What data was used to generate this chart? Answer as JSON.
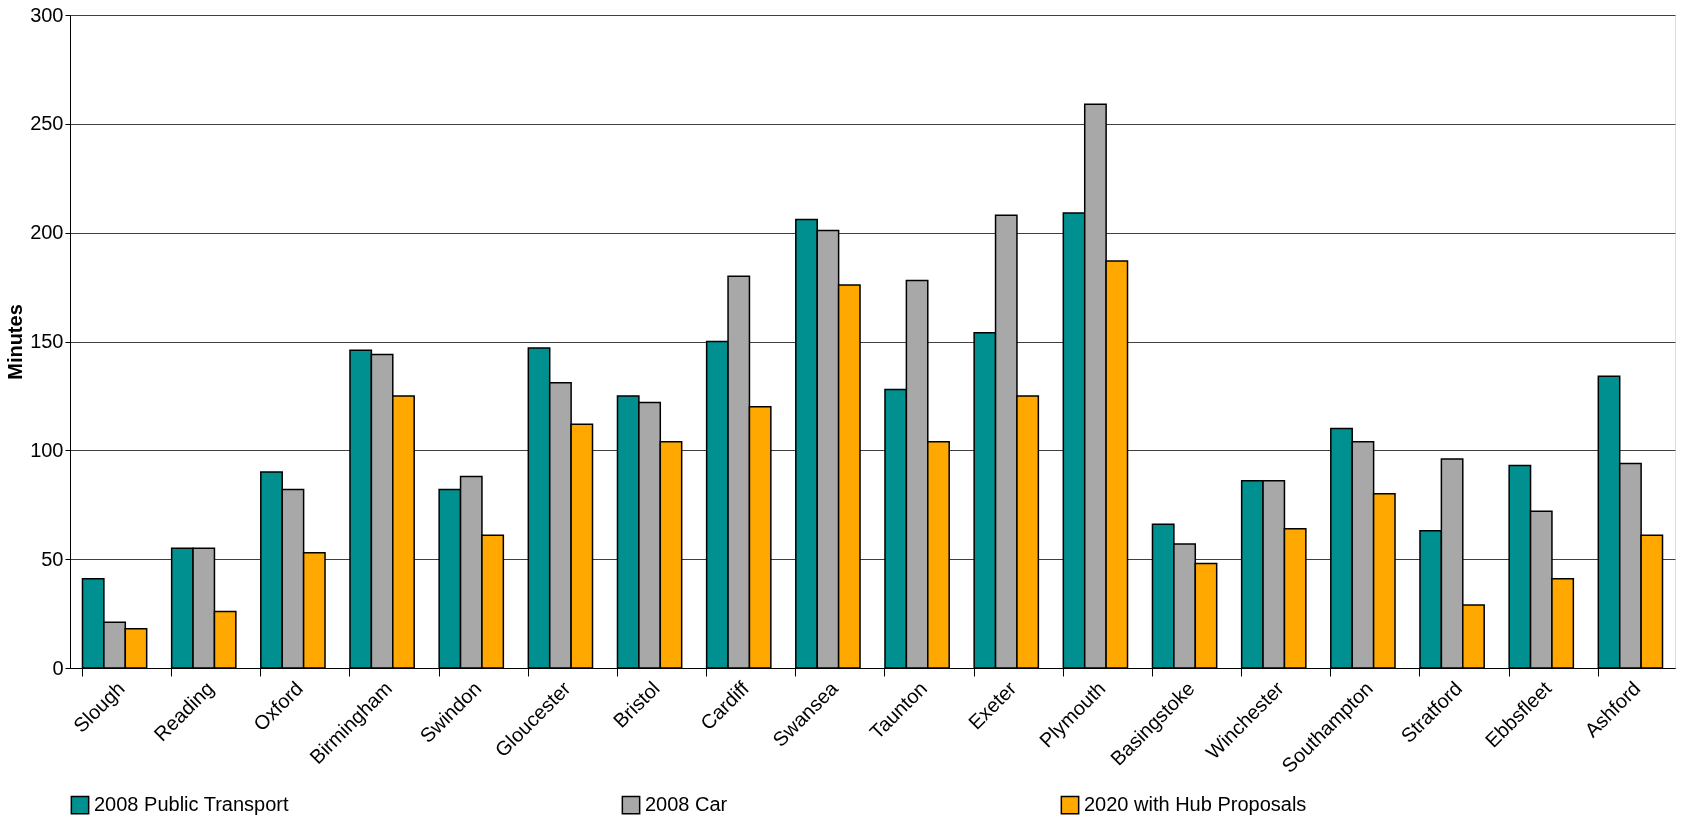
{
  "chart_data": {
    "type": "bar",
    "ylabel": "Minutes",
    "categories": [
      "Slough",
      "Reading",
      "Oxford",
      "Birmingham",
      "Swindon",
      "Gloucester",
      "Bristol",
      "Cardiff",
      "Swansea",
      "Taunton",
      "Exeter",
      "Plymouth",
      "Basingstoke",
      "Winchester",
      "Southampton",
      "Stratford",
      "Ebbsfleet",
      "Ashford"
    ],
    "series": [
      {
        "name": "2008 Public Transport",
        "color": "#009090",
        "values": [
          41,
          55,
          90,
          146,
          82,
          147,
          125,
          150,
          206,
          128,
          154,
          209,
          66,
          86,
          110,
          63,
          93,
          134
        ]
      },
      {
        "name": "2008 Car",
        "color": "#a8a8a8",
        "values": [
          21,
          55,
          82,
          144,
          88,
          131,
          122,
          180,
          201,
          178,
          208,
          259,
          57,
          86,
          104,
          96,
          72,
          94
        ]
      },
      {
        "name": "2020 with Hub Proposals",
        "color": "#ffa800",
        "values": [
          18,
          26,
          53,
          125,
          61,
          112,
          104,
          120,
          176,
          104,
          125,
          187,
          48,
          64,
          80,
          29,
          41,
          61
        ]
      }
    ],
    "ylim": [
      0,
      300
    ],
    "yticks": [
      0,
      50,
      100,
      150,
      200,
      250,
      300
    ],
    "grid": "y",
    "legend": "bottom"
  }
}
